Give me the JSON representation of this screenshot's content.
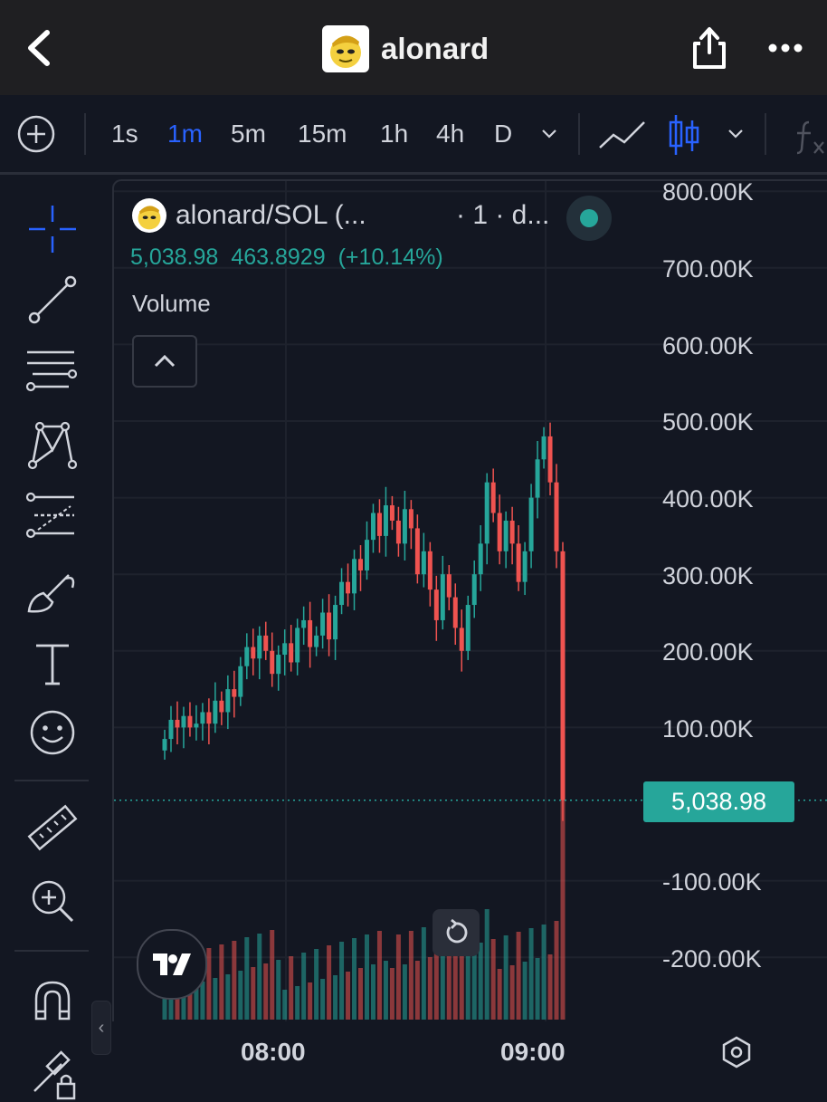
{
  "header": {
    "title": "alonard"
  },
  "toolbar": {
    "intervals": [
      "1s",
      "1m",
      "5m",
      "15m",
      "1h",
      "4h",
      "D"
    ],
    "active_interval": "1m"
  },
  "legend": {
    "symbol": "alonard/SOL (...",
    "interval": "· 1 · d...",
    "last_price": "5,038.98",
    "change": "463.8929",
    "change_pct": "(+10.14%)",
    "volume_label": "Volume"
  },
  "price_axis": {
    "labels": [
      "800.00K",
      "700.00K",
      "600.00K",
      "500.00K",
      "400.00K",
      "300.00K",
      "200.00K",
      "100.00K",
      "-100.00K",
      "-200.00K"
    ],
    "last_price": "5,038.98"
  },
  "time_axis": {
    "labels": [
      "08:00",
      "09:00"
    ]
  },
  "colors": {
    "up": "#26a69a",
    "down": "#ef5350",
    "accent": "#2962ff",
    "background": "#131722"
  },
  "chart_data": {
    "type": "candlestick",
    "y_unit": "price",
    "ylim": [
      -250000,
      820000
    ],
    "y_ticks": [
      800000,
      700000,
      600000,
      500000,
      400000,
      300000,
      200000,
      100000,
      -100000,
      -200000
    ],
    "x_ticks": [
      "08:00",
      "09:00"
    ],
    "last_price": 5038.98,
    "series": [
      {
        "name": "Volume",
        "type": "bar"
      }
    ],
    "candles_approx_close": [
      85000,
      110000,
      100000,
      115000,
      100000,
      105000,
      120000,
      105000,
      135000,
      120000,
      150000,
      140000,
      180000,
      205000,
      190000,
      220000,
      200000,
      170000,
      195000,
      210000,
      185000,
      230000,
      240000,
      205000,
      220000,
      250000,
      215000,
      260000,
      290000,
      275000,
      320000,
      305000,
      345000,
      380000,
      350000,
      390000,
      370000,
      340000,
      385000,
      360000,
      300000,
      330000,
      280000,
      240000,
      300000,
      270000,
      230000,
      200000,
      260000,
      300000,
      340000,
      420000,
      380000,
      330000,
      370000,
      340000,
      290000,
      330000,
      400000,
      450000,
      480000,
      420000,
      330000,
      5038.98
    ]
  }
}
